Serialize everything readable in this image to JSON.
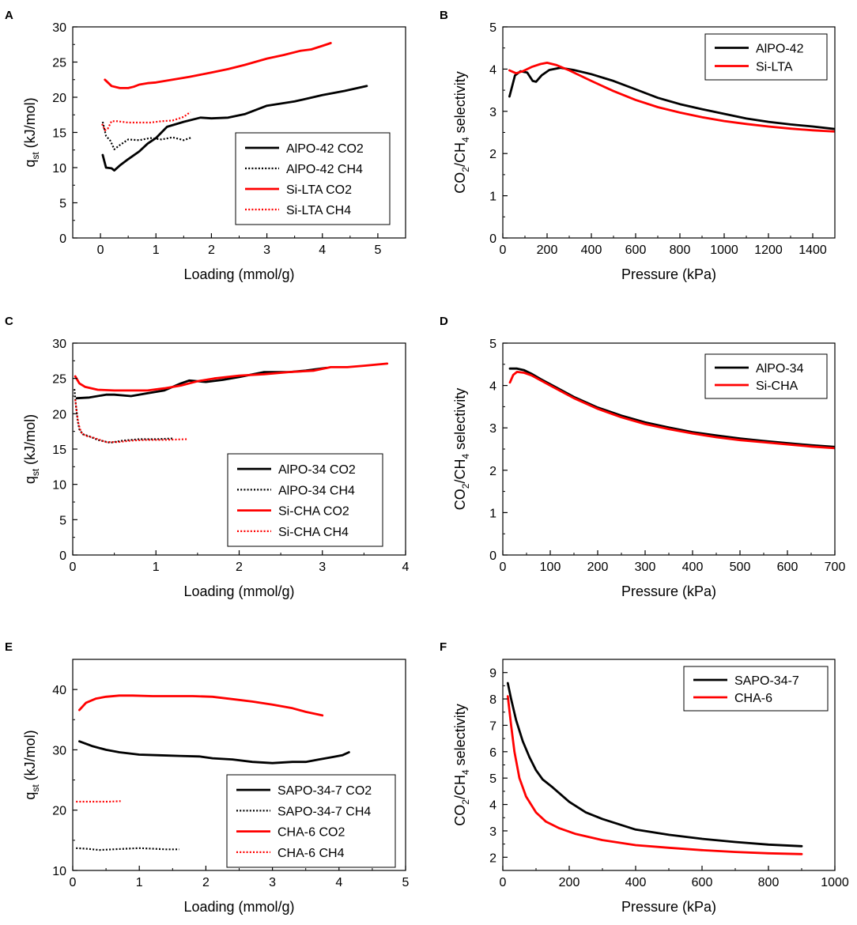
{
  "colors": {
    "black": "#000000",
    "red": "#ff0000"
  },
  "chart_data": [
    {
      "panel": "A",
      "type": "line",
      "xlabel": "Loading (mmol/g)",
      "ylabel": "q",
      "ylabel_sub": "st",
      "ylabel_tail": " (kJ/mol)",
      "xlim": [
        -0.5,
        5.5
      ],
      "ylim": [
        0,
        30
      ],
      "xticks": [
        0,
        1,
        2,
        3,
        4,
        5
      ],
      "yticks": [
        0,
        5,
        10,
        15,
        20,
        25,
        30
      ],
      "legend": "right",
      "series": [
        {
          "name": "AlPO-42 CO2",
          "color": "#000000",
          "style": "solid",
          "x": [
            0.04,
            0.1,
            0.2,
            0.25,
            0.35,
            0.5,
            0.7,
            0.85,
            1.0,
            1.2,
            1.5,
            1.8,
            2.0,
            2.3,
            2.6,
            3.0,
            3.5,
            4.0,
            4.4,
            4.8
          ],
          "y": [
            11.8,
            10.0,
            9.9,
            9.6,
            10.3,
            11.2,
            12.3,
            13.4,
            14.2,
            15.8,
            16.5,
            17.1,
            17.0,
            17.1,
            17.6,
            18.8,
            19.4,
            20.3,
            20.9,
            21.6
          ]
        },
        {
          "name": "AlPO-42 CH4",
          "color": "#000000",
          "style": "dotted",
          "x": [
            0.04,
            0.1,
            0.18,
            0.25,
            0.35,
            0.5,
            0.7,
            0.9,
            1.1,
            1.3,
            1.5,
            1.65
          ],
          "y": [
            16.5,
            14.5,
            13.8,
            12.6,
            13.2,
            14.0,
            13.9,
            14.2,
            14.0,
            14.3,
            13.9,
            14.3
          ]
        },
        {
          "name": "Si-LTA CO2",
          "color": "#ff0000",
          "style": "solid",
          "x": [
            0.08,
            0.2,
            0.35,
            0.5,
            0.6,
            0.7,
            0.85,
            1.0,
            1.3,
            1.6,
            2.0,
            2.3,
            2.6,
            3.0,
            3.3,
            3.6,
            3.8,
            4.0,
            4.15
          ],
          "y": [
            22.5,
            21.6,
            21.3,
            21.3,
            21.5,
            21.8,
            22.0,
            22.1,
            22.5,
            22.9,
            23.5,
            24.0,
            24.6,
            25.5,
            26.0,
            26.6,
            26.8,
            27.3,
            27.7
          ]
        },
        {
          "name": "Si-LTA CH4",
          "color": "#ff0000",
          "style": "dotted",
          "x": [
            0.03,
            0.08,
            0.13,
            0.2,
            0.3,
            0.5,
            0.7,
            0.9,
            1.1,
            1.3,
            1.5,
            1.62
          ],
          "y": [
            16.2,
            15.3,
            15.5,
            16.6,
            16.6,
            16.4,
            16.4,
            16.4,
            16.6,
            16.7,
            17.2,
            17.9
          ]
        }
      ]
    },
    {
      "panel": "B",
      "type": "line",
      "xlabel": "Pressure (kPa)",
      "ylabel": "CO",
      "ylabel_sub": "2",
      "ylabel_mid": "/CH",
      "ylabel_sub2": "4",
      "ylabel_tail": " selectivity",
      "xlim": [
        0,
        1500
      ],
      "ylim": [
        0,
        5
      ],
      "xticks": [
        0,
        200,
        400,
        600,
        800,
        1000,
        1200,
        1400
      ],
      "yticks": [
        0,
        1,
        2,
        3,
        4,
        5
      ],
      "legend": "top-right",
      "series": [
        {
          "name": "AlPO-42",
          "color": "#000000",
          "style": "solid",
          "x": [
            30,
            55,
            80,
            110,
            135,
            150,
            175,
            210,
            260,
            320,
            400,
            500,
            600,
            700,
            800,
            900,
            1000,
            1100,
            1200,
            1300,
            1400,
            1500
          ],
          "y": [
            3.35,
            3.85,
            3.95,
            3.92,
            3.72,
            3.7,
            3.85,
            3.98,
            4.03,
            3.98,
            3.88,
            3.72,
            3.52,
            3.32,
            3.17,
            3.05,
            2.94,
            2.83,
            2.75,
            2.69,
            2.64,
            2.58
          ]
        },
        {
          "name": "Si-LTA",
          "color": "#ff0000",
          "style": "solid",
          "x": [
            30,
            60,
            90,
            130,
            170,
            200,
            240,
            300,
            400,
            500,
            600,
            700,
            800,
            900,
            1000,
            1100,
            1200,
            1300,
            1400,
            1500
          ],
          "y": [
            3.97,
            3.9,
            3.95,
            4.05,
            4.12,
            4.15,
            4.1,
            3.97,
            3.72,
            3.48,
            3.27,
            3.1,
            2.97,
            2.86,
            2.77,
            2.7,
            2.64,
            2.59,
            2.55,
            2.52
          ]
        }
      ]
    },
    {
      "panel": "C",
      "type": "line",
      "xlabel": "Loading (mmol/g)",
      "ylabel": "q",
      "ylabel_sub": "st",
      "ylabel_tail": " (kJ/mol)",
      "xlim": [
        0,
        4
      ],
      "ylim": [
        0,
        30
      ],
      "xticks": [
        0,
        1,
        2,
        3,
        4
      ],
      "yticks": [
        0,
        5,
        10,
        15,
        20,
        25,
        30
      ],
      "legend": "bottom-right",
      "series": [
        {
          "name": "AlPO-34 CO2",
          "color": "#000000",
          "style": "solid",
          "x": [
            0.05,
            0.2,
            0.4,
            0.5,
            0.7,
            0.9,
            1.1,
            1.3,
            1.4,
            1.6,
            1.8,
            2.0,
            2.3,
            2.6,
            2.8,
            3.05
          ],
          "y": [
            22.2,
            22.3,
            22.7,
            22.7,
            22.5,
            22.9,
            23.3,
            24.3,
            24.7,
            24.5,
            24.8,
            25.2,
            25.9,
            25.9,
            26.1,
            26.5
          ]
        },
        {
          "name": "AlPO-34 CH4",
          "color": "#000000",
          "style": "dotted",
          "x": [
            0.02,
            0.04,
            0.06,
            0.08,
            0.12,
            0.2,
            0.3,
            0.45,
            0.6,
            0.8,
            1.0,
            1.2
          ],
          "y": [
            23.5,
            21.0,
            19.0,
            17.8,
            17.1,
            16.8,
            16.3,
            15.9,
            16.2,
            16.4,
            16.4,
            16.5
          ]
        },
        {
          "name": "Si-CHA CO2",
          "color": "#ff0000",
          "style": "solid",
          "x": [
            0.03,
            0.08,
            0.15,
            0.3,
            0.5,
            0.7,
            0.9,
            1.1,
            1.3,
            1.5,
            1.7,
            2.0,
            2.3,
            2.6,
            2.9,
            3.1,
            3.3,
            3.5,
            3.78
          ],
          "y": [
            25.3,
            24.3,
            23.8,
            23.4,
            23.3,
            23.3,
            23.3,
            23.6,
            24.0,
            24.6,
            25.0,
            25.4,
            25.6,
            25.9,
            26.1,
            26.6,
            26.6,
            26.8,
            27.1
          ]
        },
        {
          "name": "Si-CHA CH4",
          "color": "#ff0000",
          "style": "dotted",
          "x": [
            0.03,
            0.05,
            0.07,
            0.1,
            0.15,
            0.25,
            0.4,
            0.55,
            0.7,
            0.9,
            1.1,
            1.37
          ],
          "y": [
            22.0,
            20.0,
            18.5,
            17.4,
            16.9,
            16.6,
            16.0,
            16.0,
            16.2,
            16.3,
            16.3,
            16.4
          ]
        }
      ]
    },
    {
      "panel": "D",
      "type": "line",
      "xlabel": "Pressure (kPa)",
      "ylabel": "CO",
      "ylabel_sub": "2",
      "ylabel_mid": "/CH",
      "ylabel_sub2": "4",
      "ylabel_tail": " selectivity",
      "xlim": [
        0,
        700
      ],
      "ylim": [
        0,
        5
      ],
      "xticks": [
        0,
        100,
        200,
        300,
        400,
        500,
        600,
        700
      ],
      "yticks": [
        0,
        1,
        2,
        3,
        4,
        5
      ],
      "legend": "top-right",
      "series": [
        {
          "name": "AlPO-34",
          "color": "#000000",
          "style": "solid",
          "x": [
            15,
            30,
            45,
            60,
            80,
            100,
            150,
            200,
            250,
            300,
            350,
            400,
            450,
            500,
            550,
            600,
            650,
            700
          ],
          "y": [
            4.4,
            4.4,
            4.36,
            4.28,
            4.15,
            4.03,
            3.73,
            3.48,
            3.29,
            3.13,
            3.01,
            2.9,
            2.82,
            2.75,
            2.69,
            2.64,
            2.59,
            2.55
          ]
        },
        {
          "name": "Si-CHA",
          "color": "#ff0000",
          "style": "solid",
          "x": [
            15,
            22,
            30,
            45,
            60,
            80,
            100,
            150,
            200,
            250,
            300,
            350,
            400,
            450,
            500,
            550,
            600,
            650,
            700
          ],
          "y": [
            4.07,
            4.25,
            4.32,
            4.3,
            4.24,
            4.12,
            4.0,
            3.7,
            3.45,
            3.25,
            3.09,
            2.97,
            2.87,
            2.78,
            2.71,
            2.66,
            2.61,
            2.56,
            2.52
          ]
        }
      ]
    },
    {
      "panel": "E",
      "type": "line",
      "xlabel": "Loading (mmol/g)",
      "ylabel": "q",
      "ylabel_sub": "st",
      "ylabel_tail": " (kJ/mol)",
      "xlim": [
        0,
        5
      ],
      "ylim": [
        10,
        45
      ],
      "xticks": [
        0,
        1,
        2,
        3,
        4,
        5
      ],
      "yticks": [
        10,
        20,
        30,
        40
      ],
      "legend": "bottom-right",
      "series": [
        {
          "name": "SAPO-34-7 CO2",
          "color": "#000000",
          "style": "solid",
          "x": [
            0.1,
            0.3,
            0.5,
            0.7,
            1.0,
            1.3,
            1.6,
            1.9,
            2.1,
            2.4,
            2.7,
            3.0,
            3.3,
            3.5,
            3.7,
            3.9,
            4.05,
            4.15
          ],
          "y": [
            31.4,
            30.6,
            30.0,
            29.6,
            29.2,
            29.1,
            29.0,
            28.9,
            28.6,
            28.4,
            28.0,
            27.8,
            28.0,
            28.0,
            28.4,
            28.8,
            29.1,
            29.6
          ]
        },
        {
          "name": "SAPO-34-7 CH4",
          "color": "#000000",
          "style": "dotted",
          "x": [
            0.05,
            0.2,
            0.4,
            0.6,
            0.8,
            1.0,
            1.2,
            1.4,
            1.6
          ],
          "y": [
            13.7,
            13.6,
            13.4,
            13.5,
            13.6,
            13.7,
            13.6,
            13.5,
            13.5
          ]
        },
        {
          "name": "CHA-6 CO2",
          "color": "#ff0000",
          "style": "solid",
          "x": [
            0.1,
            0.2,
            0.35,
            0.5,
            0.7,
            0.9,
            1.2,
            1.5,
            1.8,
            2.1,
            2.4,
            2.7,
            3.0,
            3.3,
            3.5,
            3.75
          ],
          "y": [
            36.6,
            37.8,
            38.5,
            38.8,
            39.0,
            39.0,
            38.9,
            38.9,
            38.9,
            38.8,
            38.4,
            38.0,
            37.5,
            36.9,
            36.3,
            35.7
          ]
        },
        {
          "name": "CHA-6 CH4",
          "color": "#ff0000",
          "style": "dotted",
          "x": [
            0.05,
            0.2,
            0.4,
            0.55,
            0.72
          ],
          "y": [
            21.4,
            21.4,
            21.4,
            21.4,
            21.5
          ]
        }
      ]
    },
    {
      "panel": "F",
      "type": "line",
      "xlabel": "Pressure (kPa)",
      "ylabel": "CO",
      "ylabel_sub": "2",
      "ylabel_mid": "/CH",
      "ylabel_sub2": "4",
      "ylabel_tail": " selectivity",
      "xlim": [
        0,
        1000
      ],
      "ylim": [
        1.5,
        9.5
      ],
      "xticks": [
        0,
        200,
        400,
        600,
        800,
        1000
      ],
      "yticks": [
        2,
        3,
        4,
        5,
        6,
        7,
        8,
        9
      ],
      "legend": "top-right",
      "series": [
        {
          "name": "SAPO-34-7",
          "color": "#000000",
          "style": "solid",
          "x": [
            15,
            25,
            40,
            60,
            80,
            100,
            120,
            150,
            200,
            250,
            300,
            400,
            500,
            600,
            700,
            800,
            900
          ],
          "y": [
            8.6,
            8.0,
            7.2,
            6.4,
            5.8,
            5.3,
            4.95,
            4.65,
            4.1,
            3.7,
            3.45,
            3.05,
            2.85,
            2.7,
            2.58,
            2.48,
            2.42
          ]
        },
        {
          "name": "CHA-6",
          "color": "#ff0000",
          "style": "solid",
          "x": [
            15,
            25,
            35,
            50,
            70,
            100,
            130,
            170,
            220,
            300,
            400,
            500,
            600,
            700,
            800,
            900
          ],
          "y": [
            8.1,
            7.0,
            6.0,
            5.0,
            4.3,
            3.7,
            3.35,
            3.1,
            2.88,
            2.65,
            2.46,
            2.36,
            2.27,
            2.2,
            2.15,
            2.12
          ]
        }
      ]
    }
  ]
}
